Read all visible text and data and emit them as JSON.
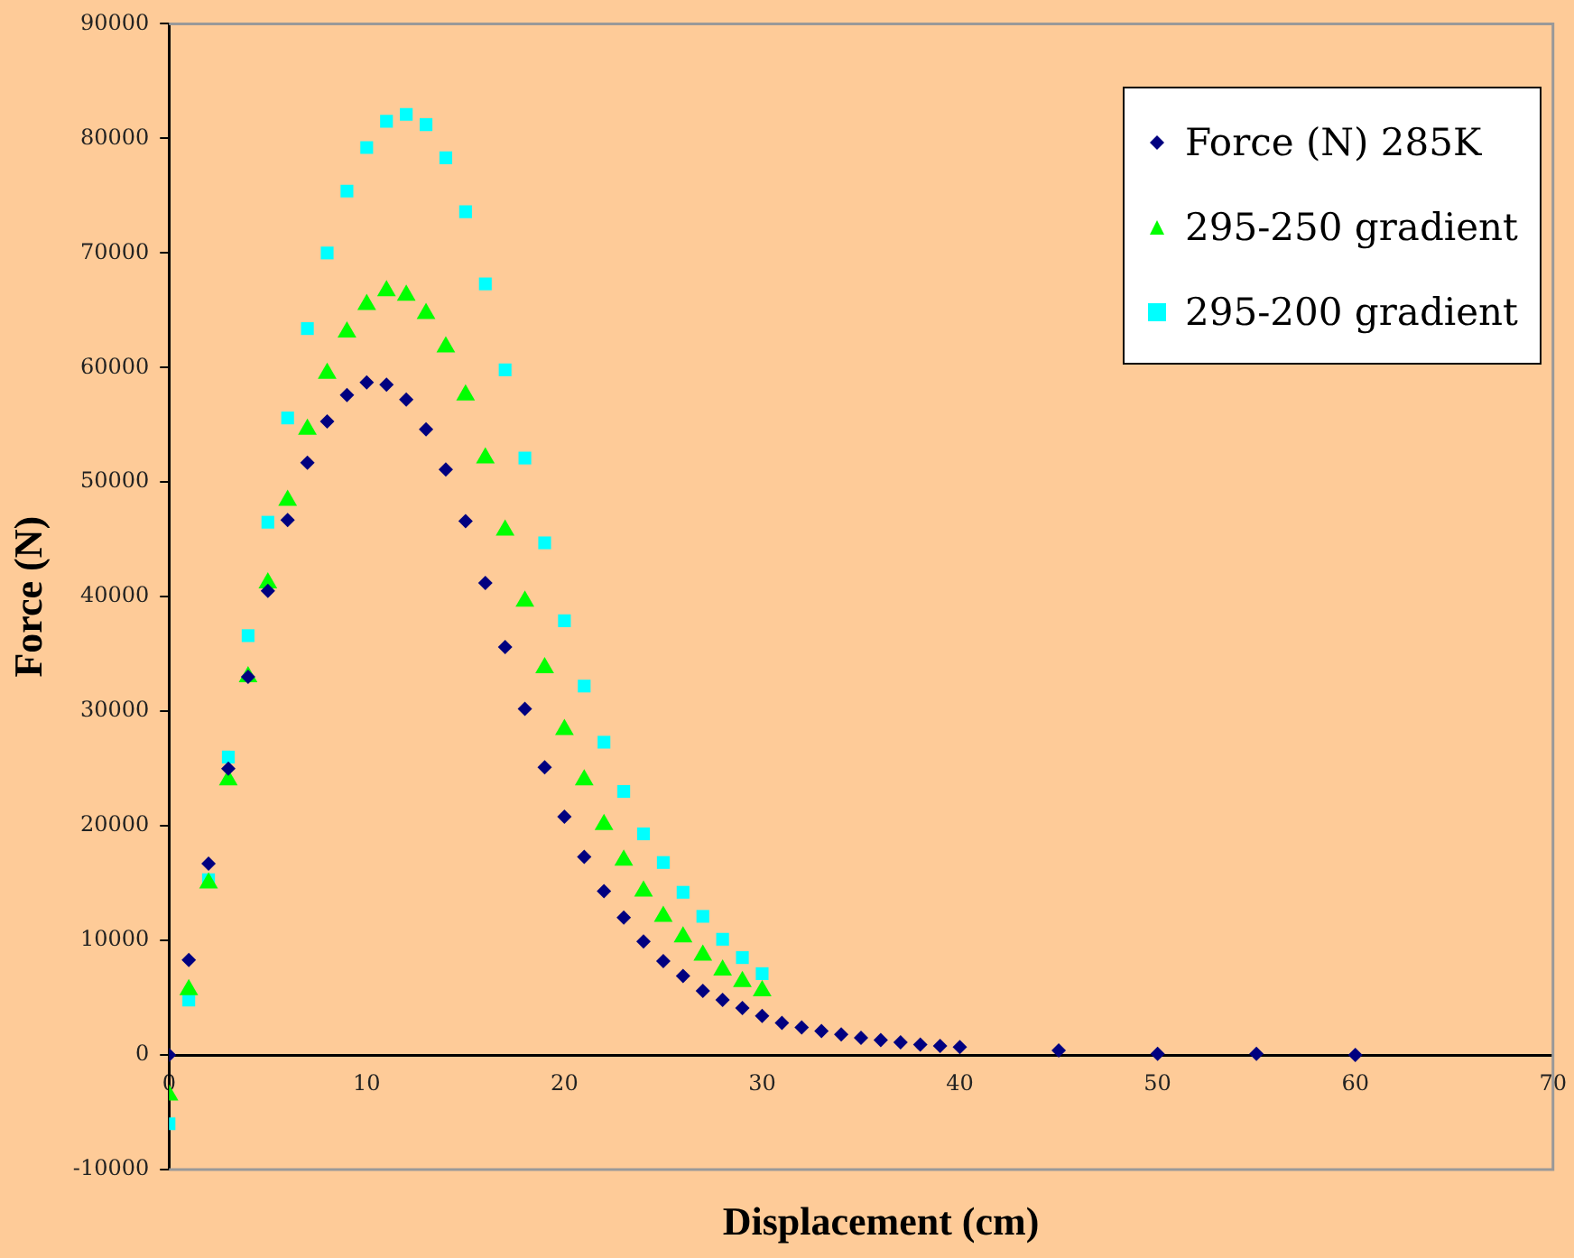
{
  "chart_data": {
    "type": "scatter",
    "xlabel": "Displacement (cm)",
    "ylabel": "Force (N)",
    "xlim": [
      0,
      70
    ],
    "xticks": [
      0,
      10,
      20,
      30,
      40,
      50,
      60,
      70
    ],
    "ylim": [
      -10000,
      90000
    ],
    "yticks": [
      -10000,
      0,
      10000,
      20000,
      30000,
      40000,
      50000,
      60000,
      70000,
      80000,
      90000
    ],
    "grid": false,
    "legend": "top right",
    "series": [
      {
        "name": "Force (N) 285K",
        "color": "#000080",
        "marker": "diamond",
        "x": [
          0,
          1,
          2,
          3,
          4,
          5,
          6,
          7,
          8,
          9,
          10,
          11,
          12,
          13,
          14,
          15,
          16,
          17,
          18,
          19,
          20,
          21,
          22,
          23,
          24,
          25,
          26,
          27,
          28,
          29,
          30,
          31,
          32,
          33,
          34,
          35,
          36,
          37,
          38,
          39,
          40,
          45,
          50,
          55,
          60
        ],
        "values": [
          0,
          8300,
          16700,
          25000,
          33000,
          40500,
          46700,
          51700,
          55300,
          57600,
          58700,
          58500,
          57200,
          54600,
          51100,
          46600,
          41200,
          35600,
          30200,
          25100,
          20800,
          17300,
          14300,
          12000,
          9900,
          8200,
          6900,
          5600,
          4800,
          4100,
          3400,
          2800,
          2400,
          2100,
          1800,
          1500,
          1300,
          1100,
          900,
          800,
          700,
          400,
          100,
          100,
          0
        ]
      },
      {
        "name": "295-250 gradient",
        "color": "#00ff00",
        "marker": "triangle",
        "x": [
          0,
          1,
          2,
          3,
          4,
          5,
          6,
          7,
          8,
          9,
          10,
          11,
          12,
          13,
          14,
          15,
          16,
          17,
          18,
          19,
          20,
          21,
          22,
          23,
          24,
          25,
          26,
          27,
          28,
          29,
          30
        ],
        "values": [
          -3500,
          5700,
          15000,
          24000,
          33000,
          41200,
          48400,
          54600,
          59500,
          63100,
          65500,
          66700,
          66300,
          64700,
          61800,
          57600,
          52100,
          45800,
          39600,
          33800,
          28400,
          24000,
          20100,
          17000,
          14300,
          12100,
          10300,
          8700,
          7400,
          6400,
          5600
        ]
      },
      {
        "name": "295-200 gradient",
        "color": "#00ffff",
        "marker": "square",
        "x": [
          0,
          1,
          2,
          3,
          4,
          5,
          6,
          7,
          8,
          9,
          10,
          11,
          12,
          13,
          14,
          15,
          16,
          17,
          18,
          19,
          20,
          21,
          22,
          23,
          24,
          25,
          26,
          27,
          28,
          29,
          30
        ],
        "values": [
          -6000,
          4800,
          15300,
          26000,
          36600,
          46500,
          55600,
          63400,
          70000,
          75400,
          79200,
          81500,
          82100,
          81200,
          78300,
          73600,
          67300,
          59800,
          52100,
          44700,
          37900,
          32200,
          27300,
          23000,
          19300,
          16800,
          14200,
          12100,
          10100,
          8500,
          7100
        ]
      }
    ]
  }
}
